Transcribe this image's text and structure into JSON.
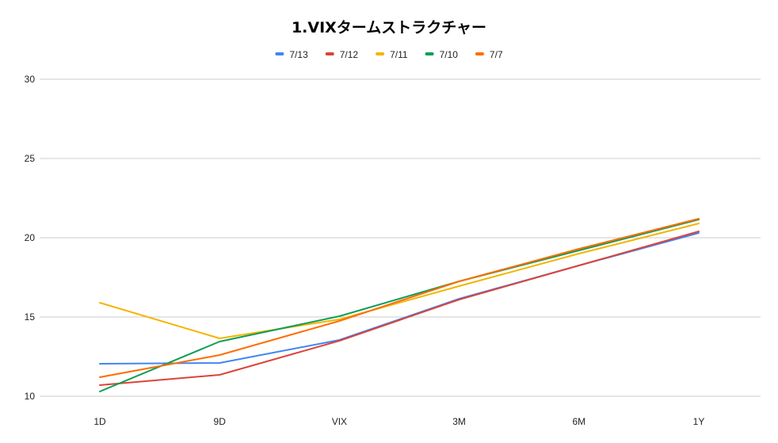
{
  "chart_data": {
    "type": "line",
    "title": "1.VIXタームストラクチャー",
    "xlabel": "",
    "ylabel": "",
    "categories": [
      "1D",
      "9D",
      "VIX",
      "3M",
      "6M",
      "1Y"
    ],
    "ylim": [
      10,
      30
    ],
    "yticks": [
      10,
      15,
      20,
      25,
      30
    ],
    "grid": true,
    "legend_position": "top",
    "series": [
      {
        "name": "7/13",
        "color": "#4285f4",
        "values": [
          12.05,
          12.1,
          13.55,
          16.15,
          18.25,
          20.3
        ]
      },
      {
        "name": "7/12",
        "color": "#db4437",
        "values": [
          10.7,
          11.35,
          13.5,
          16.1,
          18.25,
          20.4
        ]
      },
      {
        "name": "7/11",
        "color": "#f4b400",
        "values": [
          15.9,
          13.65,
          14.85,
          16.95,
          19.0,
          20.9
        ]
      },
      {
        "name": "7/10",
        "color": "#0f9d58",
        "values": [
          10.3,
          13.45,
          15.05,
          17.25,
          19.2,
          21.15
        ]
      },
      {
        "name": "7/7",
        "color": "#ff6d01",
        "values": [
          11.2,
          12.6,
          14.75,
          17.25,
          19.3,
          21.2
        ]
      }
    ]
  }
}
